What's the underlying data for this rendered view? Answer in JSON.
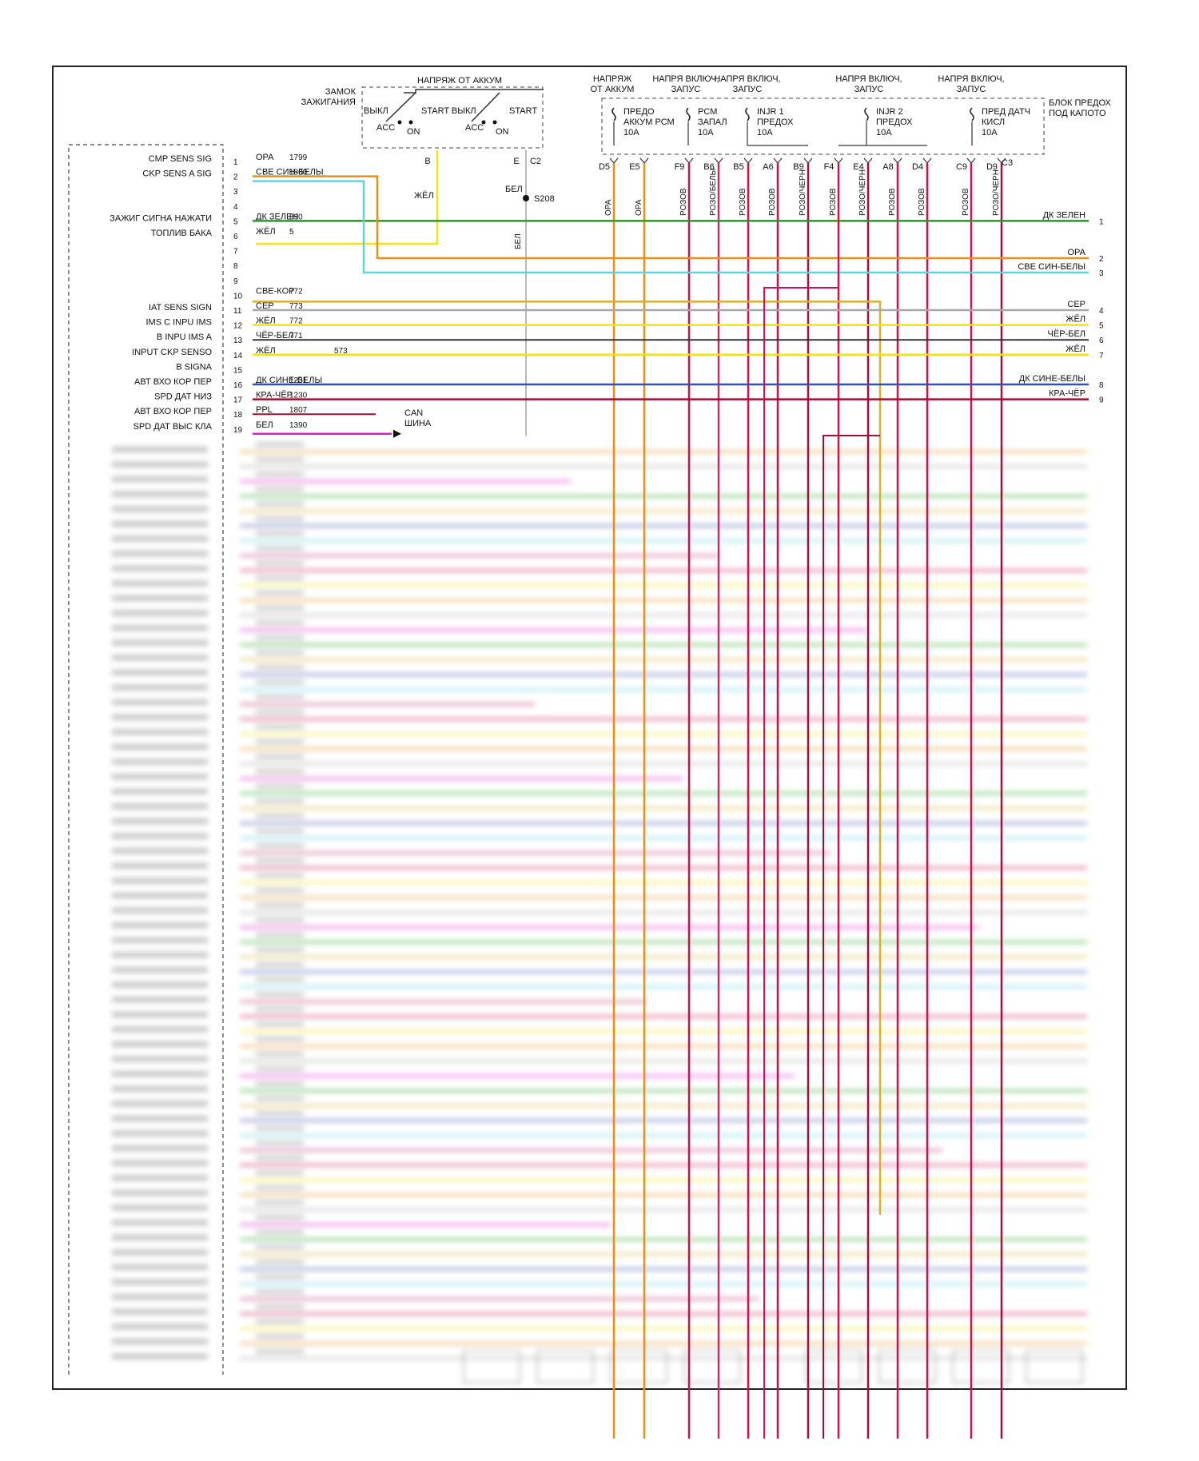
{
  "ignition_switch": {
    "title": "ЗАМОК\nЗАЖИГАНИЯ",
    "battery_label": "НАПРЯЖ ОТ АККУМ",
    "left_labels": [
      "ВЫКЛ",
      "START ВЫКЛ",
      "ACC",
      "ON"
    ],
    "right_labels": [
      "START",
      "ACC",
      "ON"
    ],
    "terminals": [
      "B",
      "E",
      "C2"
    ]
  },
  "splice": {
    "label": "S208",
    "wire_label_top": "БЕЛ",
    "wire_label_vertical": "БЕЛ",
    "yellow_label": "ЖЁЛ"
  },
  "fuse_box": {
    "title": "БЛОК ПРЕДОХ\nПОД КАПОТО",
    "headers": [
      {
        "text": "НАПРЯЖ\nОТ АККУМ"
      },
      {
        "text": "НАПРЯ ВКЛЮЧ,\nЗАПУС"
      },
      {
        "text": "НАПРЯ ВКЛЮЧ,\nЗАПУС"
      },
      {
        "text": "НАПРЯ ВКЛЮЧ,\nЗАПУС"
      },
      {
        "text": "НАПРЯ ВКЛЮЧ,\nЗАПУС"
      }
    ],
    "fuses": [
      {
        "name": "ПРЕДО\nАККУМ РСМ\n10А"
      },
      {
        "name": "PCM\nЗАПАЛ\n10А"
      },
      {
        "name": "INJR 1\nПРЕДОХ\n10А"
      },
      {
        "name": "INJR 2\nПРЕДОХ\n10А"
      },
      {
        "name": "ПРЕД ДАТЧ\nКИСЛ\n10А"
      }
    ],
    "connector_c3": "C3"
  },
  "fuse_pins": [
    {
      "pin": "D5",
      "wire": "ОРА",
      "color": "#e8901a"
    },
    {
      "pin": "E5",
      "wire": "ОРА",
      "color": "#e8901a"
    },
    {
      "pin": "F9",
      "wire": "РОЗОВ",
      "color": "#d0104a"
    },
    {
      "pin": "B6",
      "wire": "РОЗО/БЕЛЫ",
      "color": "#c03070"
    },
    {
      "pin": "B5",
      "wire": "РОЗОВ",
      "color": "#d0104a"
    },
    {
      "pin": "A6",
      "wire": "РОЗОВ",
      "color": "#d0104a"
    },
    {
      "pin": "B9",
      "wire": "РОЗО/ЧЕРН",
      "color": "#a01040"
    },
    {
      "pin": "F4",
      "wire": "РОЗОВ",
      "color": "#d0104a"
    },
    {
      "pin": "E4",
      "wire": "РОЗО/ЧЕРН",
      "color": "#a01040"
    },
    {
      "pin": "A8",
      "wire": "РОЗОВ",
      "color": "#d0104a"
    },
    {
      "pin": "D4",
      "wire": "РОЗОВ",
      "color": "#d0104a"
    },
    {
      "pin": "C9",
      "wire": "РОЗОВ",
      "color": "#d0104a"
    },
    {
      "pin": "D9",
      "wire": "РОЗО/ЧЕРН",
      "color": "#a01040"
    }
  ],
  "pcm_pins": [
    {
      "pin": "1",
      "label": "CMP SENS SIG",
      "wire": "ОРА",
      "circuit": "1799"
    },
    {
      "pin": "2",
      "label": "CKP SENS A SIG",
      "wire": "СВЕ СИН-БЕЛЫ",
      "circuit": "1800"
    },
    {
      "pin": "3",
      "label": "",
      "wire": "",
      "circuit": ""
    },
    {
      "pin": "4",
      "label": "",
      "wire": "",
      "circuit": ""
    },
    {
      "pin": "5",
      "label": "ЗАЖИГ СИГНА НАЖАТИ",
      "wire": "ДК ЗЕЛЕН",
      "circuit": "890"
    },
    {
      "pin": "6",
      "label": "ТОПЛИВ БАКА",
      "wire": "ЖЁЛ",
      "circuit": "5"
    },
    {
      "pin": "7",
      "label": "",
      "wire": "",
      "circuit": ""
    },
    {
      "pin": "8",
      "label": "",
      "wire": "",
      "circuit": ""
    },
    {
      "pin": "9",
      "label": "",
      "wire": "",
      "circuit": ""
    },
    {
      "pin": "10",
      "label": "",
      "wire": "СВЕ-КОР",
      "circuit": "772"
    },
    {
      "pin": "11",
      "label": "IAT SENS SIGN",
      "wire": "СЕР",
      "circuit": "773"
    },
    {
      "pin": "12",
      "label": "IMS C INPU IMS",
      "wire": "ЖЁЛ",
      "circuit": "772"
    },
    {
      "pin": "13",
      "label": "B INPU IMS A",
      "wire": "ЧЁР-БЕЛ",
      "circuit": "771"
    },
    {
      "pin": "14",
      "label": "INPUT CKP SENSO",
      "wire": "ЖЁЛ",
      "circuit": "573"
    },
    {
      "pin": "15",
      "label": "B SIGNA",
      "wire": "",
      "circuit": ""
    },
    {
      "pin": "16",
      "label": "АВТ ВХО КОР ПЕР",
      "wire": "ДК СИНЕ-БЕЛЫ",
      "circuit": "1231"
    },
    {
      "pin": "17",
      "label": "SPD ДАТ НИЗ",
      "wire": "КРА-ЧЁР",
      "circuit": "1230"
    },
    {
      "pin": "18",
      "label": "АВТ ВХО КОР ПЕР",
      "wire": "PPL",
      "circuit": "1807"
    },
    {
      "pin": "19",
      "label": "SPD ДАТ ВЫС КЛА",
      "wire": "БЕЛ",
      "circuit": "1390"
    }
  ],
  "can_label": "CAN\nШИНА",
  "right_outputs": [
    {
      "label": "ДК ЗЕЛЕН",
      "pin": "1"
    },
    {
      "label": "ОРА",
      "pin": "2"
    },
    {
      "label": "СВЕ СИН-БЕЛЫ",
      "pin": "3"
    },
    {
      "label": "СЕР",
      "pin": "4"
    },
    {
      "label": "ЖЁЛ",
      "pin": "5"
    },
    {
      "label": "ЧЁР-БЕЛ",
      "pin": "6"
    },
    {
      "label": "ЖЁЛ",
      "pin": "7"
    },
    {
      "label": "ДК СИНЕ-БЕЛЫ",
      "pin": "8"
    },
    {
      "label": "КРА-ЧЁР",
      "pin": "9"
    }
  ],
  "colors": {
    "orange": "#e8901a",
    "cyan": "#5fd3e0",
    "green": "#1aa31a",
    "yellow": "#f2e21a",
    "gray": "#a8a8a8",
    "black": "#333333",
    "blue": "#3a4fb0",
    "darkred": "#a01030",
    "magenta": "#e01ad0",
    "pink": "#d0104a",
    "white_wire": "#bbbbbb"
  }
}
